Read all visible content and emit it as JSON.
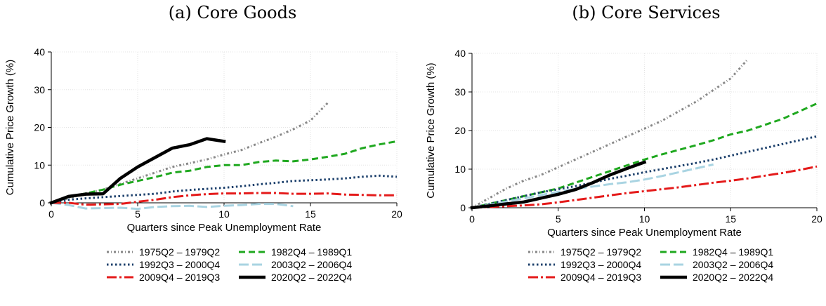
{
  "chart_data": [
    {
      "type": "line",
      "title": "(a) Core Goods",
      "xlabel": "Quarters since Peak Unemployment Rate",
      "ylabel": "Cumulative Price Growth (%)",
      "xlim": [
        0,
        20
      ],
      "ylim": [
        0,
        40
      ],
      "xticks": [
        0,
        5,
        10,
        15,
        20
      ],
      "yticks": [
        0,
        10,
        20,
        30,
        40
      ],
      "grid": true,
      "legend_position": "bottom",
      "series": [
        {
          "name": "1975Q2 – 1979Q2",
          "color": "#888888",
          "style": "dashdot-dotted",
          "x": [
            0,
            1,
            2,
            3,
            4,
            5,
            6,
            7,
            8,
            9,
            10,
            11,
            12,
            13,
            14,
            15,
            16
          ],
          "y": [
            0,
            1.2,
            2.5,
            3.5,
            5,
            6.5,
            8,
            9.5,
            10.5,
            11.5,
            12.8,
            14,
            15.8,
            17.5,
            19.5,
            21.8,
            26.5
          ]
        },
        {
          "name": "1982Q4 – 1989Q1",
          "color": "#1fa81f",
          "style": "dashed",
          "x": [
            0,
            1,
            2,
            3,
            4,
            5,
            6,
            7,
            8,
            9,
            10,
            11,
            12,
            13,
            14,
            15,
            16,
            17,
            18,
            19,
            20
          ],
          "y": [
            0,
            1.5,
            2.5,
            3.5,
            4.8,
            5.8,
            6.8,
            8,
            8.5,
            9.5,
            10,
            10,
            10.8,
            11.2,
            11,
            11.5,
            12.2,
            13,
            14.5,
            15.5,
            16.3
          ]
        },
        {
          "name": "1992Q3 – 2000Q4",
          "color": "#1b3f6b",
          "style": "dotted",
          "x": [
            0,
            1,
            2,
            3,
            4,
            5,
            6,
            7,
            8,
            9,
            10,
            11,
            12,
            13,
            14,
            15,
            16,
            17,
            18,
            19,
            20
          ],
          "y": [
            0,
            0.8,
            1.2,
            1.5,
            1.8,
            2.1,
            2.4,
            3,
            3.4,
            3.7,
            4,
            4.4,
            4.9,
            5.3,
            5.8,
            6,
            6.2,
            6.5,
            6.9,
            7.2,
            6.9
          ]
        },
        {
          "name": "2003Q2 – 2006Q4",
          "color": "#a9d4e2",
          "style": "longdash",
          "x": [
            0,
            1,
            2,
            3,
            4,
            5,
            6,
            7,
            8,
            9,
            10,
            11,
            12,
            13,
            14
          ],
          "y": [
            0,
            -0.6,
            -1.5,
            -1.4,
            -1.3,
            -1.6,
            -1.1,
            -0.9,
            -0.8,
            -1.1,
            -0.8,
            -0.6,
            -0.3,
            -0.3,
            -0.9
          ]
        },
        {
          "name": "2009Q4 – 2019Q3",
          "color": "#e41a1a",
          "style": "dashdot",
          "x": [
            0,
            1,
            2,
            3,
            4,
            5,
            6,
            7,
            8,
            9,
            10,
            11,
            12,
            13,
            14,
            15,
            16,
            17,
            18,
            19,
            20
          ],
          "y": [
            0,
            0,
            -0.5,
            -0.4,
            -0.3,
            0.3,
            0.8,
            1.5,
            2,
            2.3,
            2.5,
            2.5,
            2.6,
            2.6,
            2.4,
            2.4,
            2.5,
            2.2,
            2.1,
            2,
            2
          ]
        },
        {
          "name": "2020Q2 – 2022Q4",
          "color": "#000000",
          "style": "solid",
          "x": [
            0,
            1,
            2,
            3,
            4,
            5,
            6,
            7,
            8,
            9,
            10
          ],
          "y": [
            0,
            1.7,
            2.3,
            2.4,
            6.5,
            9.5,
            12,
            14.5,
            15.4,
            17,
            16.3
          ]
        }
      ]
    },
    {
      "type": "line",
      "title": "(b) Core Services",
      "xlabel": "Quarters since Peak Unemployment Rate",
      "ylabel": "Cumulative Price Growth (%)",
      "xlim": [
        0,
        20
      ],
      "ylim": [
        0,
        40
      ],
      "xticks": [
        0,
        5,
        10,
        15,
        20
      ],
      "yticks": [
        0,
        10,
        20,
        30,
        40
      ],
      "grid": true,
      "legend_position": "bottom",
      "series": [
        {
          "name": "1975Q2 – 1979Q2",
          "color": "#888888",
          "style": "dashdot-dotted",
          "x": [
            0,
            1,
            2,
            3,
            4,
            5,
            6,
            7,
            8,
            9,
            10,
            11,
            12,
            13,
            14,
            15,
            16
          ],
          "y": [
            0,
            2.5,
            5,
            7,
            8.5,
            10.5,
            12.5,
            14.5,
            16.5,
            18.5,
            20.5,
            22.5,
            25,
            27.5,
            30.5,
            33.5,
            38.5
          ]
        },
        {
          "name": "1982Q4 – 1989Q1",
          "color": "#1fa81f",
          "style": "dashed",
          "x": [
            0,
            1,
            2,
            3,
            4,
            5,
            6,
            7,
            8,
            9,
            10,
            11,
            12,
            13,
            14,
            15,
            16,
            17,
            18,
            19,
            20
          ],
          "y": [
            0,
            1,
            2,
            3,
            4,
            5,
            6.5,
            8,
            9.5,
            11,
            12.5,
            13.8,
            15,
            16.2,
            17.5,
            19,
            20,
            21.5,
            23,
            25,
            27
          ]
        },
        {
          "name": "1992Q3 – 2000Q4",
          "color": "#1b3f6b",
          "style": "dotted",
          "x": [
            0,
            1,
            2,
            3,
            4,
            5,
            6,
            7,
            8,
            9,
            10,
            11,
            12,
            13,
            14,
            15,
            16,
            17,
            18,
            19,
            20
          ],
          "y": [
            0,
            1,
            2,
            3,
            4,
            4.8,
            5.6,
            6.5,
            7.5,
            8.3,
            9.2,
            10,
            10.8,
            11.6,
            12.5,
            13.5,
            14.5,
            15.5,
            16.5,
            17.5,
            18.5
          ]
        },
        {
          "name": "2003Q2 – 2006Q4",
          "color": "#a9d4e2",
          "style": "longdash",
          "x": [
            0,
            1,
            2,
            3,
            4,
            5,
            6,
            7,
            8,
            9,
            10,
            11,
            12,
            13,
            14
          ],
          "y": [
            0,
            0.8,
            1.6,
            2.4,
            3.3,
            4.1,
            4.9,
            5.5,
            6.1,
            6.6,
            7.3,
            8.2,
            9.2,
            10.2,
            11.2
          ]
        },
        {
          "name": "2009Q4 – 2019Q3",
          "color": "#e41a1a",
          "style": "dashdot",
          "x": [
            0,
            1,
            2,
            3,
            4,
            5,
            6,
            7,
            8,
            9,
            10,
            11,
            12,
            13,
            14,
            15,
            16,
            17,
            18,
            19,
            20
          ],
          "y": [
            0,
            0.2,
            0.4,
            0.6,
            0.9,
            1.4,
            2,
            2.6,
            3.2,
            3.8,
            4.3,
            4.8,
            5.3,
            5.9,
            6.5,
            7,
            7.6,
            8.3,
            9,
            9.8,
            10.7
          ]
        },
        {
          "name": "2020Q2 – 2022Q4",
          "color": "#000000",
          "style": "solid",
          "x": [
            0,
            1,
            2,
            3,
            4,
            5,
            6,
            7,
            8,
            9,
            10
          ],
          "y": [
            0,
            0.5,
            1,
            1.5,
            2.5,
            3.5,
            4.7,
            6.5,
            8.5,
            10.2,
            11.8
          ]
        }
      ]
    }
  ]
}
